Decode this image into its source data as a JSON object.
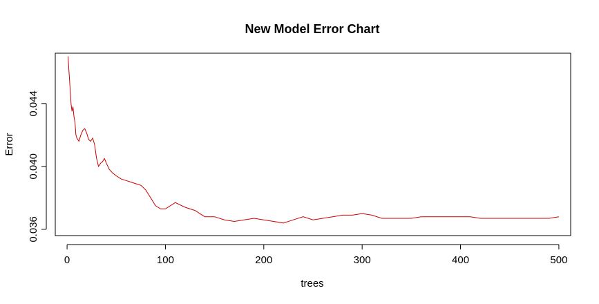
{
  "chart_data": {
    "type": "line",
    "title": "New Model Error Chart",
    "xlabel": "trees",
    "ylabel": "Error",
    "xlim": [
      -12,
      512
    ],
    "ylim": [
      0.0356,
      0.0472
    ],
    "xticks": [
      0,
      100,
      200,
      300,
      400,
      500
    ],
    "xtick_labels": [
      "0",
      "100",
      "200",
      "300",
      "400",
      "500"
    ],
    "yticks": [
      0.036,
      0.04,
      0.044
    ],
    "ytick_labels": [
      "0.036",
      "0.040",
      "0.044"
    ],
    "grid": false,
    "legend": "none",
    "line_color": "#cc0000",
    "series": [
      {
        "x": [
          1,
          2,
          3,
          4,
          5,
          6,
          7,
          8,
          9,
          10,
          12,
          14,
          16,
          18,
          20,
          22,
          24,
          26,
          28,
          30,
          32,
          34,
          36,
          38,
          40,
          43,
          46,
          50,
          55,
          60,
          65,
          70,
          75,
          80,
          85,
          90,
          95,
          100,
          110,
          120,
          130,
          140,
          150,
          160,
          170,
          180,
          190,
          200,
          210,
          220,
          230,
          240,
          250,
          260,
          270,
          280,
          290,
          300,
          310,
          320,
          330,
          340,
          350,
          360,
          370,
          380,
          390,
          400,
          410,
          420,
          430,
          440,
          450,
          460,
          470,
          480,
          490,
          500
        ],
        "y": [
          0.047,
          0.046,
          0.045,
          0.044,
          0.0435,
          0.0438,
          0.0432,
          0.0428,
          0.042,
          0.0418,
          0.0416,
          0.042,
          0.0423,
          0.0424,
          0.0421,
          0.0417,
          0.0416,
          0.0418,
          0.0414,
          0.0405,
          0.04,
          0.0402,
          0.0403,
          0.0405,
          0.0402,
          0.0398,
          0.0396,
          0.0394,
          0.0392,
          0.0391,
          0.039,
          0.0389,
          0.0388,
          0.0385,
          0.038,
          0.0375,
          0.0373,
          0.0373,
          0.0377,
          0.0374,
          0.0372,
          0.0368,
          0.0368,
          0.0366,
          0.0365,
          0.0366,
          0.0367,
          0.0366,
          0.0365,
          0.0364,
          0.0366,
          0.0368,
          0.0366,
          0.0367,
          0.0368,
          0.0369,
          0.0369,
          0.037,
          0.0369,
          0.0367,
          0.0367,
          0.0367,
          0.0367,
          0.0368,
          0.0368,
          0.0368,
          0.0368,
          0.0368,
          0.0368,
          0.0367,
          0.0367,
          0.0367,
          0.0367,
          0.0367,
          0.0367,
          0.0367,
          0.0367,
          0.0368
        ]
      }
    ]
  }
}
